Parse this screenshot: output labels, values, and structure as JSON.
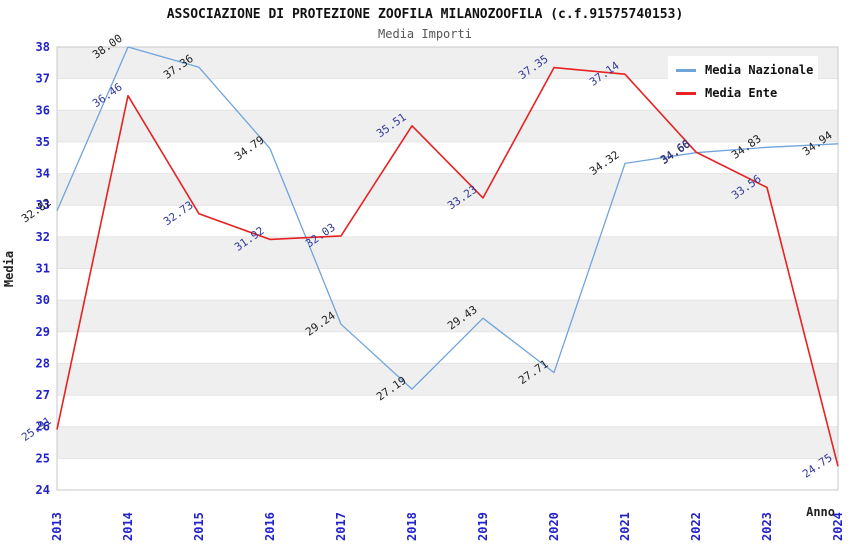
{
  "chart_data": {
    "type": "line",
    "title": "ASSOCIAZIONE DI PROTEZIONE ZOOFILA MILANOZOOFILA (c.f.91575740153)",
    "subtitle": "Media Importi",
    "xlabel": "Anno",
    "ylabel": "Media",
    "ylim": [
      24,
      38
    ],
    "y_tick_step": 1,
    "grid": "horizontal-stripes-alternating",
    "legend_position": "top-right",
    "categories": [
      "2013",
      "2014",
      "2015",
      "2016",
      "2017",
      "2018",
      "2019",
      "2020",
      "2021",
      "2022",
      "2023",
      "2024"
    ],
    "series": [
      {
        "name": "Media Nazionale",
        "color": "#6fa5dc",
        "label_color": "#222222",
        "values": [
          32.82,
          38.0,
          37.36,
          34.79,
          29.24,
          27.19,
          29.43,
          27.71,
          34.32,
          34.66,
          34.83,
          34.94
        ]
      },
      {
        "name": "Media Ente",
        "color": "#e62222",
        "label_color": "#333a99",
        "values": [
          25.91,
          36.46,
          32.73,
          31.92,
          32.03,
          35.51,
          33.23,
          37.35,
          37.14,
          34.68,
          33.56,
          24.75
        ]
      }
    ],
    "colors": {
      "tick_label": "#2222cc",
      "stripe": "#efefef",
      "plot_border": "#c9c9c9",
      "gridline": "#e4e4e4",
      "title": "#111111",
      "subtitle": "#555555"
    }
  }
}
